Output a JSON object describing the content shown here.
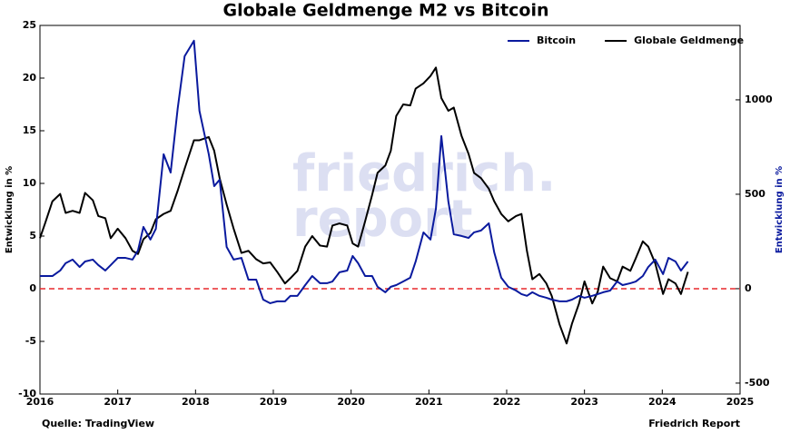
{
  "chart_data": {
    "type": "line",
    "title": "Globale Geldmenge M2 vs Bitcoin",
    "ylabel": "Entwicklung in %",
    "y2label": "Entwicklung in %",
    "watermark": [
      "friedrich.",
      "report"
    ],
    "source": "Quelle: TradingView",
    "credit": "Friedrich Report",
    "legend": "upper right",
    "grid": false,
    "reference_line": {
      "value": 0,
      "color": "#e8282b",
      "style": "dashed"
    },
    "xlim": [
      2016,
      2025
    ],
    "xticks": [
      2016,
      2017,
      2018,
      2019,
      2020,
      2021,
      2022,
      2023,
      2024,
      2025
    ],
    "ylim": [
      -10,
      25
    ],
    "yticks": [
      -10,
      -5,
      0,
      5,
      10,
      15,
      20,
      25
    ],
    "y2lim": [
      -558,
      1394
    ],
    "y2ticks": [
      -500,
      0,
      500,
      1000
    ],
    "y2color": "#0a1a9e",
    "x": [
      2016.0,
      2016.07,
      2016.16,
      2016.26,
      2016.33,
      2016.42,
      2016.51,
      2016.58,
      2016.68,
      2016.75,
      2016.84,
      2016.91,
      2017.0,
      2017.1,
      2017.19,
      2017.26,
      2017.33,
      2017.42,
      2017.49,
      2017.59,
      2017.68,
      2017.77,
      2017.86,
      2017.98,
      2018.05,
      2018.17,
      2018.24,
      2018.31,
      2018.4,
      2018.49,
      2018.59,
      2018.68,
      2018.78,
      2018.87,
      2018.96,
      2019.05,
      2019.15,
      2019.22,
      2019.31,
      2019.41,
      2019.5,
      2019.6,
      2019.69,
      2019.76,
      2019.85,
      2019.95,
      2020.02,
      2020.09,
      2020.18,
      2020.27,
      2020.34,
      2020.44,
      2020.51,
      2020.58,
      2020.67,
      2020.76,
      2020.83,
      2020.93,
      2021.02,
      2021.09,
      2021.16,
      2021.25,
      2021.32,
      2021.42,
      2021.51,
      2021.58,
      2021.67,
      2021.77,
      2021.84,
      2021.93,
      2022.02,
      2022.12,
      2022.19,
      2022.26,
      2022.33,
      2022.42,
      2022.51,
      2022.58,
      2022.68,
      2022.77,
      2022.84,
      2022.93,
      2023.0,
      2023.1,
      2023.17,
      2023.24,
      2023.33,
      2023.42,
      2023.49,
      2023.59,
      2023.66,
      2023.75,
      2023.82,
      2023.91,
      2024.01,
      2024.08,
      2024.17,
      2024.24,
      2024.33
    ],
    "series": [
      {
        "name": "Bitcoin",
        "color": "#0a1a9e",
        "axis": "y2",
        "values": [
          67,
          67,
          67,
          96,
          135,
          154,
          115,
          144,
          154,
          125,
          96,
          125,
          163,
          163,
          154,
          202,
          327,
          260,
          317,
          712,
          615,
          952,
          1231,
          1313,
          942,
          712,
          543,
          577,
          221,
          154,
          163,
          48,
          48,
          -58,
          -77,
          -67,
          -67,
          -38,
          -38,
          19,
          67,
          29,
          29,
          38,
          87,
          96,
          173,
          135,
          67,
          67,
          10,
          -19,
          10,
          19,
          38,
          58,
          144,
          298,
          260,
          423,
          808,
          462,
          288,
          279,
          269,
          298,
          308,
          346,
          192,
          58,
          10,
          -10,
          -29,
          -38,
          -19,
          -38,
          -48,
          -58,
          -67,
          -67,
          -58,
          -38,
          -48,
          -38,
          -29,
          -19,
          -10,
          38,
          19,
          29,
          38,
          67,
          115,
          154,
          77,
          163,
          144,
          96,
          144
        ]
      },
      {
        "name": "Globale Geldmenge",
        "color": "#000000",
        "values": [
          4.8,
          6.3,
          8.3,
          9.0,
          7.2,
          7.4,
          7.2,
          9.1,
          8.4,
          6.9,
          6.7,
          4.8,
          5.7,
          4.8,
          3.6,
          3.3,
          4.7,
          5.3,
          6.6,
          7.1,
          7.4,
          9.3,
          11.4,
          14.1,
          14.1,
          14.4,
          13.1,
          10.5,
          8.0,
          5.7,
          3.4,
          3.6,
          2.8,
          2.4,
          2.5,
          1.6,
          0.5,
          1.0,
          1.7,
          4.0,
          5.0,
          4.1,
          4.0,
          6.0,
          6.2,
          6.0,
          4.3,
          4.0,
          6.4,
          8.9,
          11.0,
          11.7,
          13.1,
          16.4,
          17.5,
          17.4,
          19.0,
          19.5,
          20.2,
          21.0,
          18.1,
          16.9,
          17.2,
          14.5,
          12.8,
          11.0,
          10.5,
          9.5,
          8.3,
          7.1,
          6.4,
          6.9,
          7.1,
          3.6,
          0.9,
          1.4,
          0.5,
          -0.7,
          -3.4,
          -5.2,
          -3.3,
          -1.4,
          0.7,
          -1.4,
          -0.3,
          2.1,
          1.0,
          0.7,
          2.1,
          1.7,
          2.9,
          4.5,
          4.0,
          2.4,
          -0.5,
          0.9,
          0.5,
          -0.5,
          1.6
        ]
      }
    ]
  }
}
